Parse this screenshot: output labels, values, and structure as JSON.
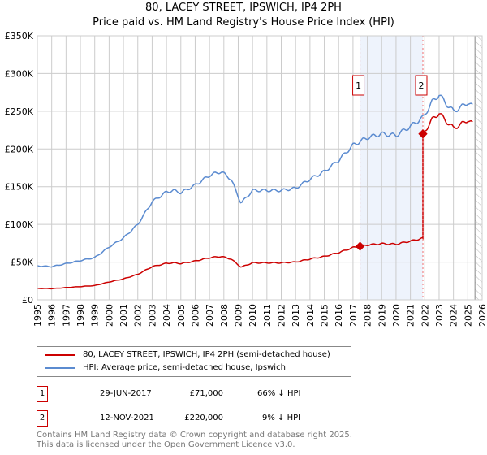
{
  "title": "80, LACEY STREET, IPSWICH, IP4 2PH",
  "subtitle": "Price paid vs. HM Land Registry's House Price Index (HPI)",
  "chart_data": {
    "type": "line",
    "xlim": [
      1995,
      2026
    ],
    "ylim": [
      0,
      350000
    ],
    "yticks": [
      0,
      50000,
      100000,
      150000,
      200000,
      250000,
      300000,
      350000
    ],
    "ytick_labels": [
      "£0",
      "£50K",
      "£100K",
      "£150K",
      "£200K",
      "£250K",
      "£300K",
      "£350K"
    ],
    "xticks": [
      1995,
      1996,
      1997,
      1998,
      1999,
      2000,
      2001,
      2002,
      2003,
      2004,
      2005,
      2006,
      2007,
      2008,
      2009,
      2010,
      2011,
      2012,
      2013,
      2014,
      2015,
      2016,
      2017,
      2018,
      2019,
      2020,
      2021,
      2022,
      2023,
      2024,
      2025,
      2026
    ],
    "grid": true,
    "hpi": {
      "name": "HPI: Average price, semi-detached house, Ipswich",
      "color": "#5b8bd0",
      "x": [
        1995,
        1996,
        1997,
        1998,
        1999,
        2000,
        2001,
        2002,
        2003,
        2004,
        2004.5,
        2005,
        2006,
        2007,
        2007.8,
        2008.5,
        2009.2,
        2010,
        2011,
        2012,
        2013,
        2014,
        2015,
        2016,
        2017,
        2017.5,
        2018,
        2019,
        2020,
        2021,
        2021.9,
        2022.5,
        2023,
        2023.5,
        2024,
        2024.5,
        2025,
        2025.4
      ],
      "values": [
        45000,
        44000,
        48000,
        52000,
        56000,
        70000,
        82000,
        100000,
        130000,
        143000,
        145000,
        142000,
        152000,
        165000,
        170000,
        160000,
        128000,
        145000,
        145000,
        145000,
        148000,
        160000,
        170000,
        185000,
        205000,
        210000,
        215000,
        220000,
        218000,
        230000,
        242000,
        262000,
        272000,
        260000,
        250000,
        255000,
        262000,
        255000
      ]
    },
    "price_paid": {
      "name": "80, LACEY STREET, IPSWICH, IP4 2PH (semi-detached house)",
      "color": "#cc0000"
    },
    "sales": [
      {
        "label": "1",
        "x": 2017.49,
        "price": 71000
      },
      {
        "label": "2",
        "x": 2021.87,
        "price": 220000
      }
    ],
    "shaded_region": [
      2017.49,
      2021.87
    ],
    "hatched_after": 2025.5
  },
  "legend": {
    "items": [
      "80, LACEY STREET, IPSWICH, IP4 2PH (semi-detached house)",
      "HPI: Average price, semi-detached house, Ipswich"
    ]
  },
  "transactions": [
    {
      "num": "1",
      "date": "29-JUN-2017",
      "price": "£71,000",
      "hpi": "66% ↓ HPI"
    },
    {
      "num": "2",
      "date": "12-NOV-2021",
      "price": "£220,000",
      "hpi": "9% ↓ HPI"
    }
  ],
  "footer": [
    "Contains HM Land Registry data © Crown copyright and database right 2025.",
    "This data is licensed under the Open Government Licence v3.0."
  ]
}
